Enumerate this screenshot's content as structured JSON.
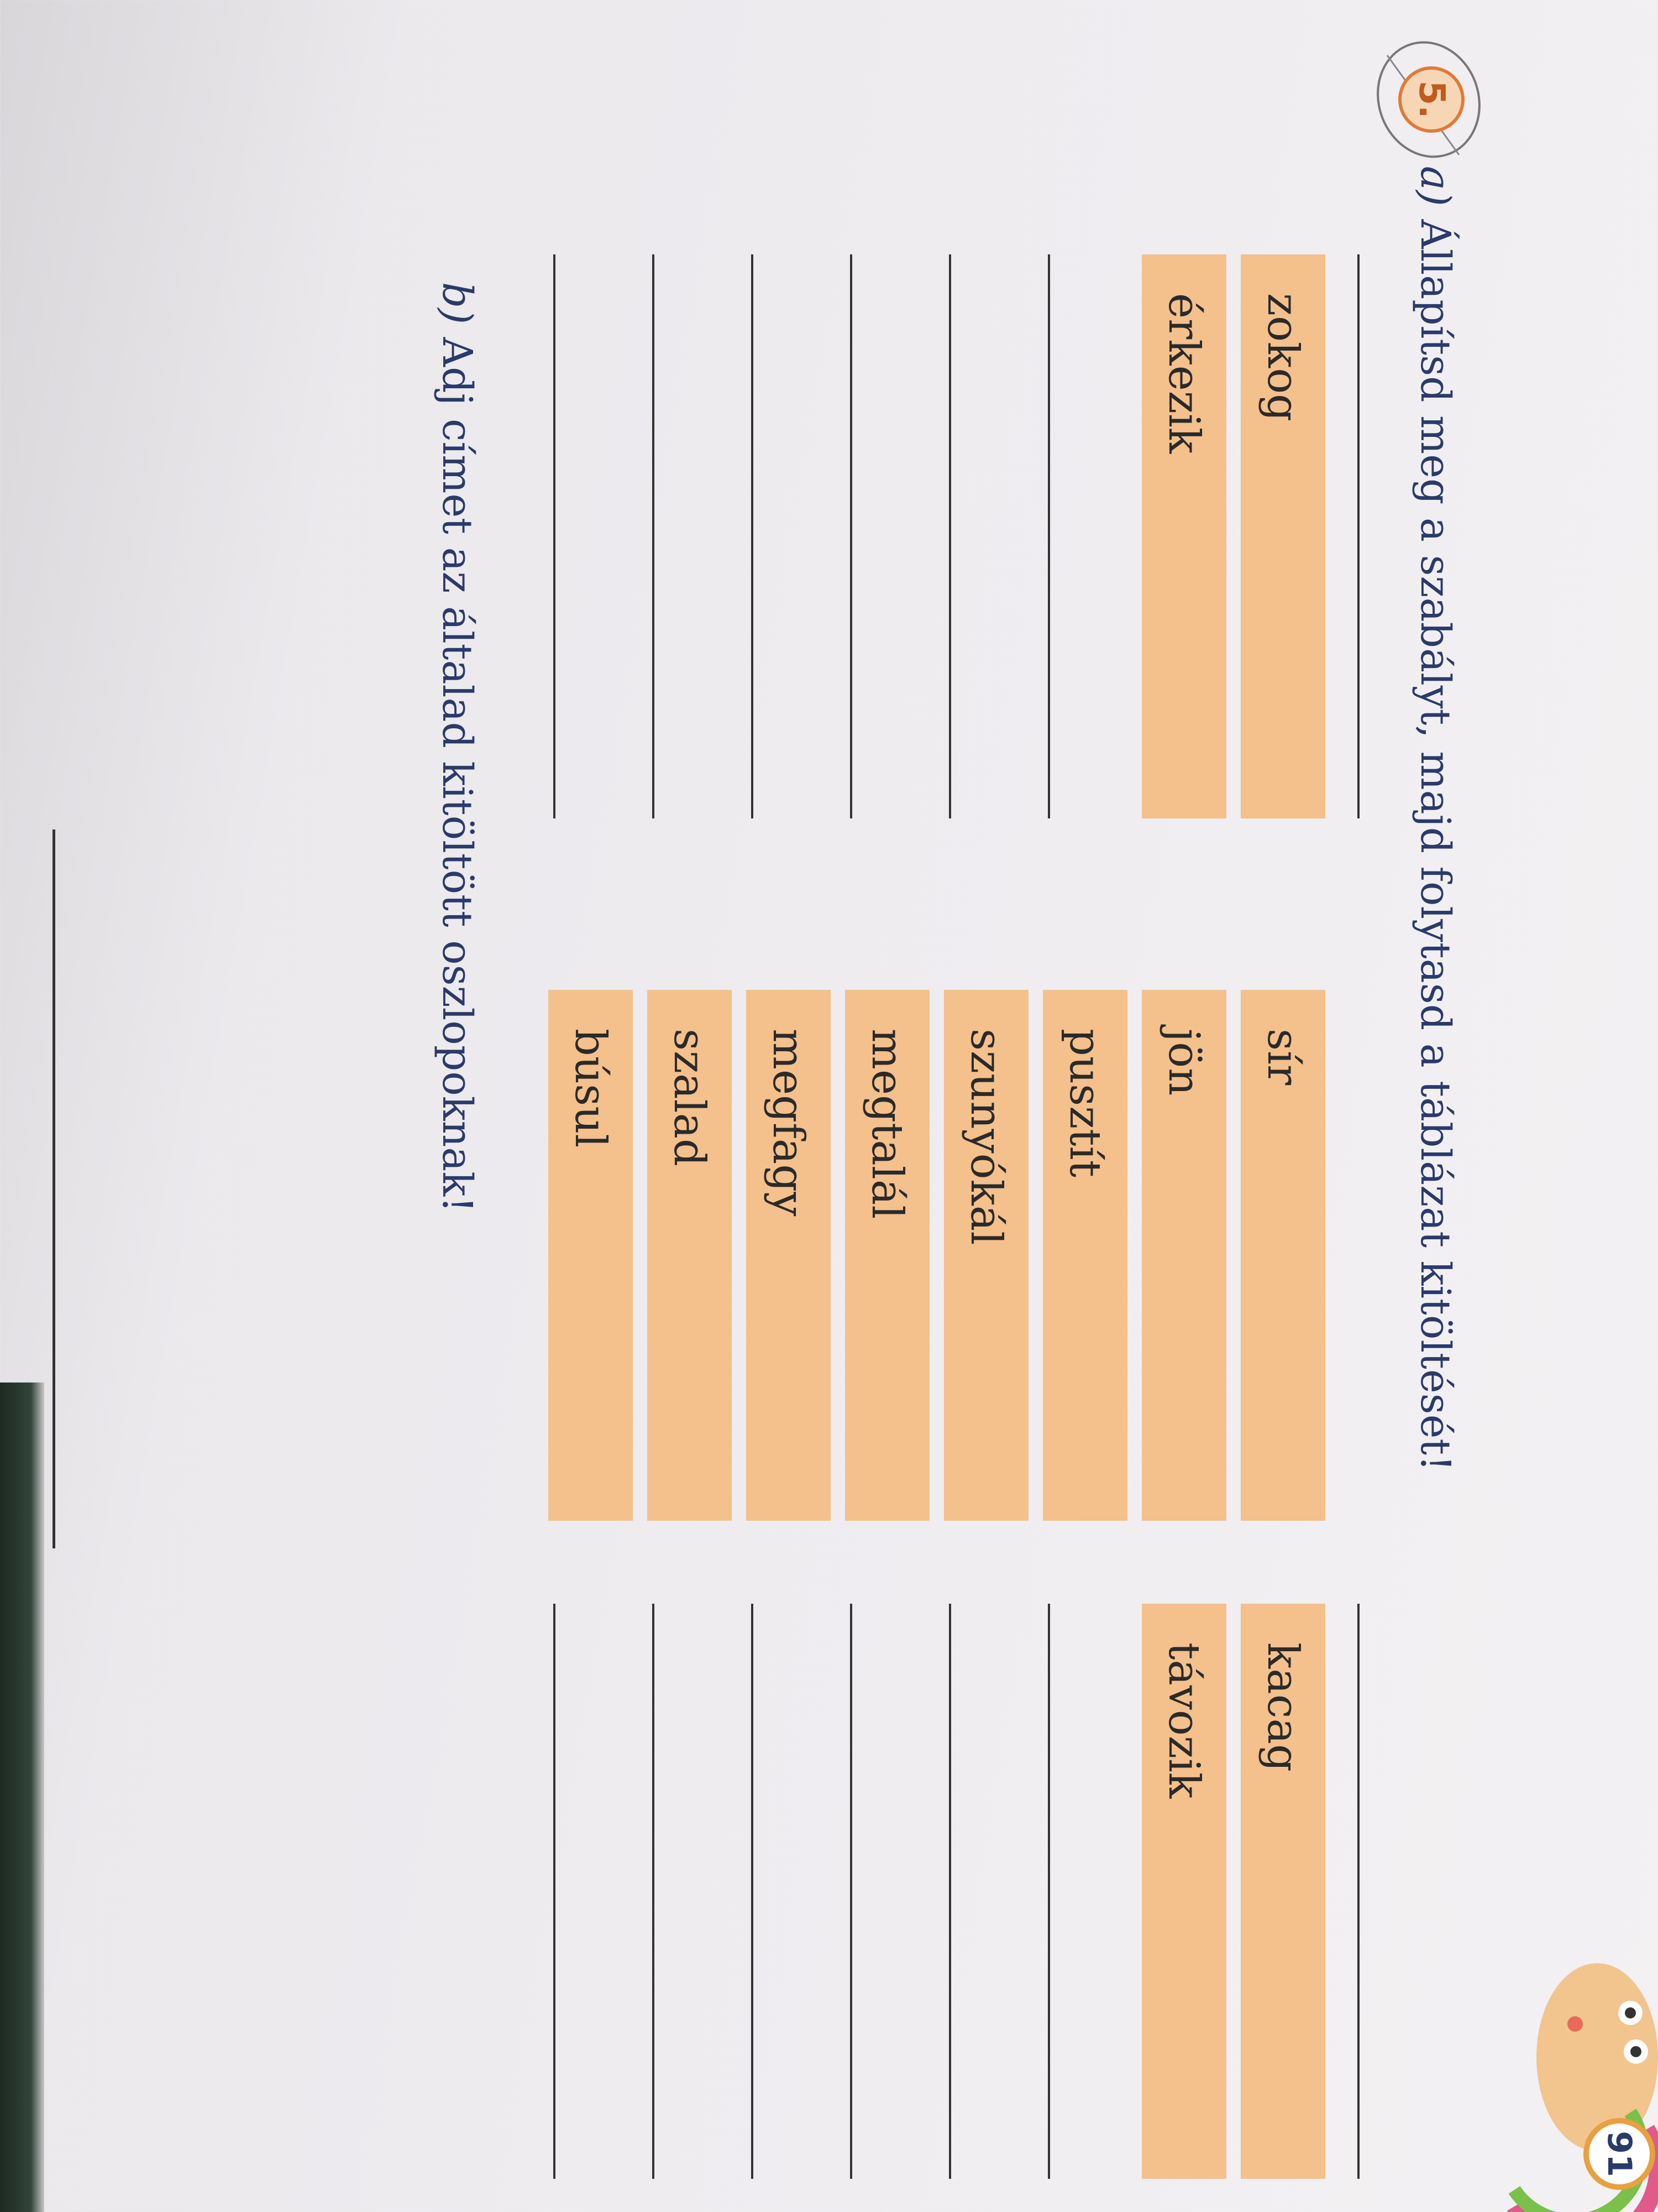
{
  "exercise": {
    "number": "5.",
    "part_a_label": "a)",
    "part_a_text": "Állapítsd meg a szabályt, majd folytasd a táblázat kitöltését!",
    "part_b_label": "b)",
    "part_b_text": "Adj címet az általad kitöltött oszlopoknak!"
  },
  "table": {
    "columns": [
      {
        "rows": [
          "zokog",
          "érkezik",
          "",
          "",
          "",
          "",
          "",
          ""
        ]
      },
      {
        "rows": [
          "sír",
          "jön",
          "pusztít",
          "szunyókál",
          "megtalál",
          "megfagy",
          "szalad",
          "búsul"
        ]
      },
      {
        "rows": [
          "kacag",
          "távozik",
          "",
          "",
          "",
          "",
          "",
          ""
        ]
      }
    ]
  },
  "page_number": "91",
  "colors": {
    "cell": "#f4c08c",
    "text_blue": "#2a3a6a",
    "badge": "#e07a3a"
  }
}
